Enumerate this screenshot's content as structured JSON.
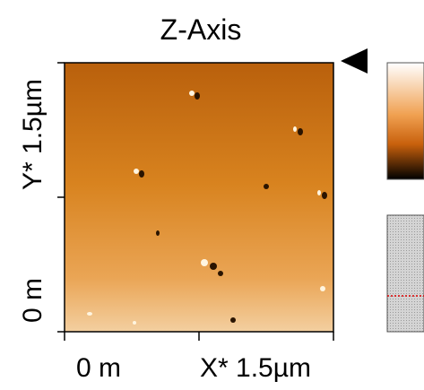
{
  "title": "Z-Axis",
  "y_axis": {
    "top_label": "Y* 1.5µm",
    "bottom_label": "0 m"
  },
  "x_axis": {
    "left_label": "0 m",
    "right_label": "X* 1.5µm"
  }
}
